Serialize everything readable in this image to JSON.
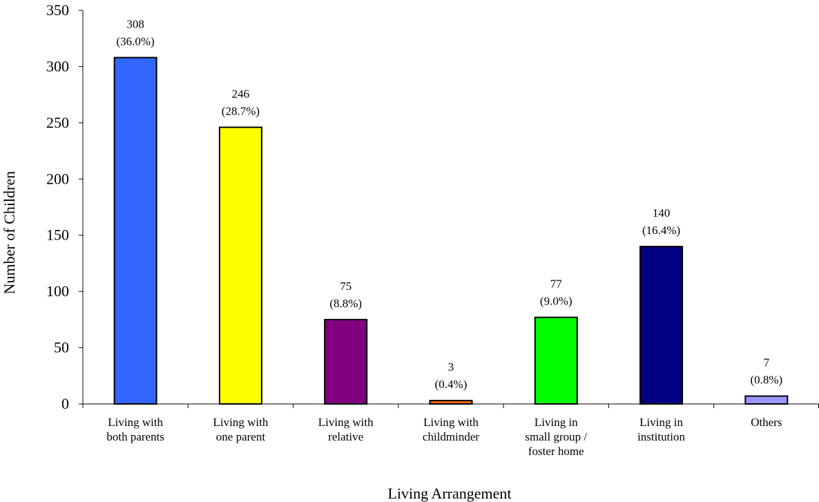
{
  "chart_data": {
    "type": "bar",
    "title": "",
    "xlabel": "Living Arrangement",
    "ylabel": "Number of Children",
    "ylim": [
      0,
      350
    ],
    "yticks": [
      0,
      50,
      100,
      150,
      200,
      250,
      300,
      350
    ],
    "grid": false,
    "legend": "none",
    "categories": [
      [
        "Living with",
        "both parents"
      ],
      [
        "Living with",
        "one parent"
      ],
      [
        "Living with",
        "relative"
      ],
      [
        "Living with",
        "childminder"
      ],
      [
        "Living in",
        "small group /",
        "foster home"
      ],
      [
        "Living in",
        "institution"
      ],
      [
        "Others"
      ]
    ],
    "values": [
      308,
      246,
      75,
      3,
      77,
      140,
      7
    ],
    "percent_labels": [
      "(36.0%)",
      "(28.7%)",
      "(8.8%)",
      "(0.4%)",
      "(9.0%)",
      "(16.4%)",
      "(0.8%)"
    ],
    "colors": [
      "#3366FF",
      "#FFFF00",
      "#800080",
      "#FF6600",
      "#00FF00",
      "#000080",
      "#9999FF"
    ]
  }
}
